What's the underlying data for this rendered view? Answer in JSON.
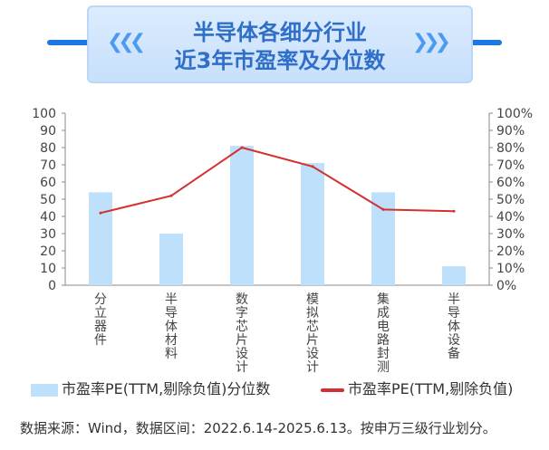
{
  "header": {
    "title_line1": "半导体各细分行业",
    "title_line2": "近3年市盈率及分位数",
    "chevrons_left": "❮❮❮",
    "chevrons_right": "❯❯❯"
  },
  "colors": {
    "banner_line": "#1b78e0",
    "title": "#2f6fc8",
    "bar": "#bfe0fb",
    "line": "#d43030"
  },
  "chart_data": {
    "type": "bar",
    "categories": [
      "分立器件",
      "半导体材料",
      "数字芯片设计",
      "模拟芯片设计",
      "集成电路封测",
      "半导体设备"
    ],
    "series": [
      {
        "name": "市盈率PE(TTM,剔除负值)分位数",
        "type": "bar",
        "axis": "left",
        "values": [
          54,
          30,
          81,
          71,
          54,
          11
        ]
      },
      {
        "name": "市盈率PE(TTM,剔除负值)",
        "type": "line",
        "axis": "right",
        "values": [
          42,
          52,
          80,
          69,
          44,
          43
        ]
      }
    ],
    "ylim_left": [
      0,
      100
    ],
    "yticks_left": [
      "0",
      "10",
      "20",
      "30",
      "40",
      "50",
      "60",
      "70",
      "80",
      "90",
      "100"
    ],
    "ylim_right": [
      0,
      100
    ],
    "yticks_right": [
      "0%",
      "10%",
      "20%",
      "30%",
      "40%",
      "50%",
      "60%",
      "70%",
      "80%",
      "90%",
      "100%"
    ],
    "grid": false,
    "legend_position": "bottom"
  },
  "legend": {
    "bar_label": "市盈率PE(TTM,剔除负值)分位数",
    "line_label": "市盈率PE(TTM,剔除负值)"
  },
  "source_note": "数据来源：Wind，数据区间：2022.6.14-2025.6.13。按申万三级行业划分。"
}
